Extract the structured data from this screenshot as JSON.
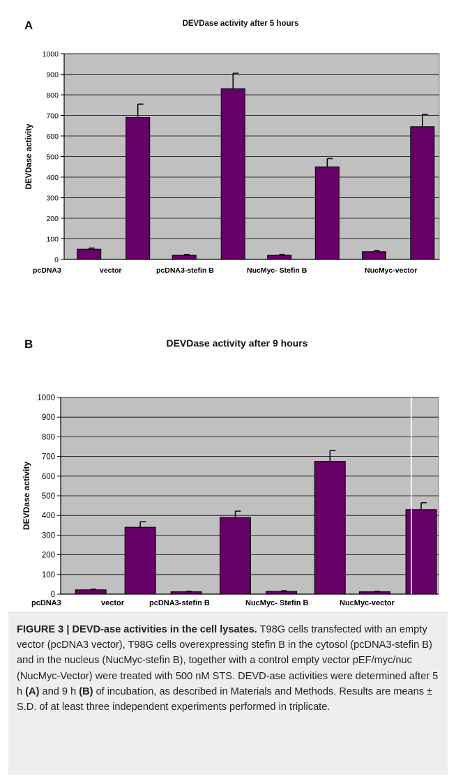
{
  "panels": [
    {
      "letter": "A",
      "chart_data": {
        "type": "bar",
        "title": "DEVDase activity after 5 hours",
        "ylabel": "DEVDase activity",
        "xlabel": "",
        "ylim": [
          0,
          1000
        ],
        "yticks": [
          0,
          100,
          200,
          300,
          400,
          500,
          600,
          700,
          800,
          900,
          1000
        ],
        "categories": [
          "pcDNA3",
          "vector",
          "pcDNA3-stefin B",
          "NucMyc- Stefin B",
          "NucMyc-vector"
        ],
        "bars": [
          {
            "group": "pcDNA3 vector",
            "value": 50,
            "error": 5
          },
          {
            "group": "pcDNA3 vector",
            "value": 690,
            "error": 65
          },
          {
            "group": "pcDNA3-stefin B",
            "value": 20,
            "error": 4
          },
          {
            "group": "pcDNA3-stefin B",
            "value": 830,
            "error": 75
          },
          {
            "group": "NucMyc- Stefin B",
            "value": 20,
            "error": 4
          },
          {
            "group": "NucMyc- Stefin B",
            "value": 450,
            "error": 40
          },
          {
            "group": "NucMyc-vector",
            "value": 38,
            "error": 4
          },
          {
            "group": "NucMyc-vector",
            "value": 645,
            "error": 60
          }
        ],
        "bar_color": "#660066",
        "plot_bg": "#c0c0c0",
        "grid": true
      }
    },
    {
      "letter": "B",
      "chart_data": {
        "type": "bar",
        "title": "DEVDase activity after 9 hours",
        "ylabel": "DEVDase activity",
        "xlabel": "",
        "ylim": [
          0,
          1000
        ],
        "yticks": [
          0,
          100,
          200,
          300,
          400,
          500,
          600,
          700,
          800,
          900,
          1000
        ],
        "categories": [
          "pcDNA3",
          "vector",
          "pcDNA3-stefin B",
          "NucMyc- Stefin B",
          "NucMyc-vector"
        ],
        "bars": [
          {
            "group": "pcDNA3 vector",
            "value": 22,
            "error": 3
          },
          {
            "group": "pcDNA3 vector",
            "value": 340,
            "error": 28
          },
          {
            "group": "pcDNA3-stefin B",
            "value": 12,
            "error": 2
          },
          {
            "group": "pcDNA3-stefin B",
            "value": 390,
            "error": 32
          },
          {
            "group": "NucMyc- Stefin B",
            "value": 14,
            "error": 3
          },
          {
            "group": "NucMyc- Stefin B",
            "value": 675,
            "error": 55
          },
          {
            "group": "NucMyc-vector",
            "value": 12,
            "error": 2
          },
          {
            "group": "NucMyc-vector",
            "value": 430,
            "error": 35
          }
        ],
        "bar_color": "#660066",
        "plot_bg": "#c0c0c0",
        "grid": true
      }
    }
  ],
  "caption": {
    "head": "FIGURE 3 | DEVD-ase activities in the cell lysates.",
    "body_1": " T98G cells transfected with an empty vector (pcDNA3 vector), T98G cells overexpressing stefin B in the cytosol (pcDNA3-stefin B) and in the nucleus (NucMyc-stefin B), together with a control empty vector pEF/myc/nuc (NucMyc-Vector) were treated with 500 nM STS. DEVD-ase activities were determined after 5 h ",
    "ref_a": "(A)",
    "body_2": " and 9 h ",
    "ref_b": "(B)",
    "body_3": " of incubation, as described in Materials and Methods. Results are means ± S.D. of at least three independent experiments performed in triplicate."
  }
}
